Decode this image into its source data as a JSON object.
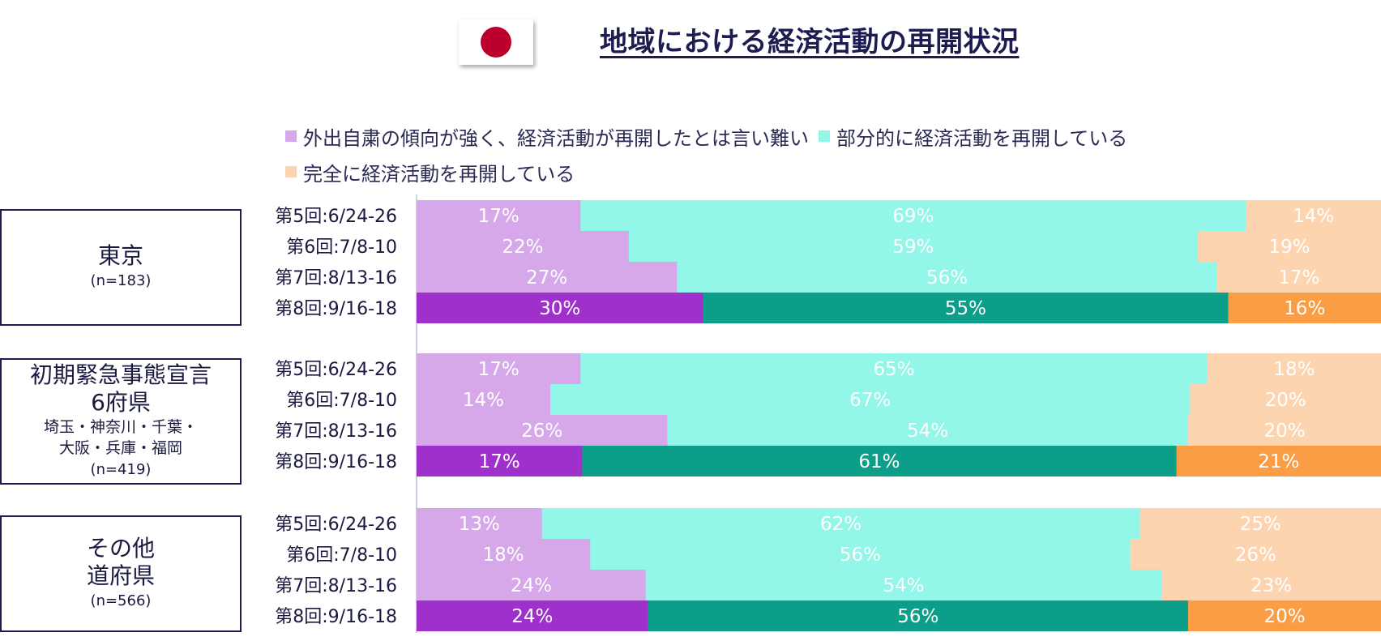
{
  "title": "地域における経済活動の再開状況",
  "flag": {
    "icon": "japan-flag-icon",
    "disc_color": "#bc002d"
  },
  "legend": [
    {
      "label": "外出自粛の傾向が強く、経済活動が再開したとは言い難い",
      "color": "#d6a8ea"
    },
    {
      "label": "部分的に経済活動を再開している",
      "color": "#92f6e8"
    },
    {
      "label": "完全に経済活動を再開している",
      "color": "#fdd4b0"
    }
  ],
  "groups": [
    {
      "name_lines": [
        "東京"
      ],
      "sub_lines": [],
      "n": "(n=183)"
    },
    {
      "name_lines": [
        "初期緊急事態宣言",
        "6府県"
      ],
      "sub_lines": [
        "埼玉・神奈川・千葉・",
        "大阪・兵庫・福岡"
      ],
      "n": "(n=419)"
    },
    {
      "name_lines": [
        "その他",
        "道府県"
      ],
      "sub_lines": [],
      "n": "(n=566)"
    }
  ],
  "chart_data": {
    "type": "bar",
    "orientation": "horizontal",
    "stacked": true,
    "percent_of_total": true,
    "categories": [
      "第5回:6/24-26",
      "第6回:7/8-10",
      "第7回:8/13-16",
      "第8回:9/16-18"
    ],
    "series_labels": [
      "外出自粛の傾向が強く、経済活動が再開したとは言い難い",
      "部分的に経済活動を再開している",
      "完全に経済活動を再開している"
    ],
    "colors_light": [
      "#d6a8ea",
      "#92f6e8",
      "#fdd4b0"
    ],
    "colors_dark": [
      "#a030cc",
      "#0c9e88",
      "#fb9d45"
    ],
    "groups": [
      {
        "group": "東京",
        "values": [
          [
            17,
            69,
            14
          ],
          [
            22,
            59,
            19
          ],
          [
            27,
            56,
            17
          ],
          [
            30,
            55,
            16
          ]
        ]
      },
      {
        "group": "初期緊急事態宣言6府県",
        "values": [
          [
            17,
            65,
            18
          ],
          [
            14,
            67,
            20
          ],
          [
            26,
            54,
            20
          ],
          [
            17,
            61,
            21
          ]
        ]
      },
      {
        "group": "その他道府県",
        "values": [
          [
            13,
            62,
            25
          ],
          [
            18,
            56,
            26
          ],
          [
            24,
            54,
            23
          ],
          [
            24,
            56,
            20
          ]
        ]
      }
    ],
    "value_suffix": "%"
  }
}
